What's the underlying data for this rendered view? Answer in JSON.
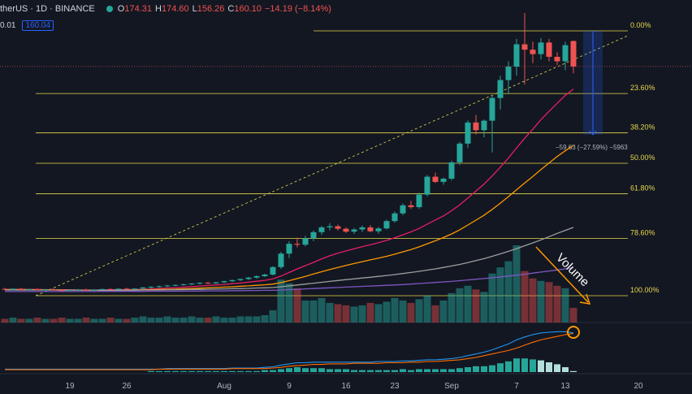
{
  "header": {
    "symbol": "therUS",
    "interval": "1D",
    "exchange": "BINANCE",
    "open_label": "O",
    "open": "174.31",
    "high_label": "H",
    "high": "174.60",
    "low_label": "L",
    "low": "156.26",
    "close_label": "C",
    "close": "160.10",
    "change": "−14.19 (−8.14%)"
  },
  "sub_header": {
    "left_value": "0.01",
    "price_box": "160.04"
  },
  "chart_data": {
    "type": "candlestick",
    "x_ticks": [
      "19",
      "26",
      "Aug",
      "9",
      "16",
      "23",
      "Sep",
      "7",
      "13",
      "20"
    ],
    "candles": [
      {
        "o": 35.8,
        "h": 36.4,
        "l": 35.2,
        "c": 35.6
      },
      {
        "o": 35.6,
        "h": 36.2,
        "l": 35.1,
        "c": 35.9
      },
      {
        "o": 35.9,
        "h": 36.3,
        "l": 35.0,
        "c": 35.3
      },
      {
        "o": 35.3,
        "h": 35.9,
        "l": 34.7,
        "c": 35.6
      },
      {
        "o": 35.6,
        "h": 36.1,
        "l": 35.0,
        "c": 35.2
      },
      {
        "o": 35.2,
        "h": 35.7,
        "l": 34.6,
        "c": 35.5
      },
      {
        "o": 35.5,
        "h": 36.0,
        "l": 34.9,
        "c": 35.1
      },
      {
        "o": 35.1,
        "h": 35.6,
        "l": 34.4,
        "c": 34.7
      },
      {
        "o": 34.7,
        "h": 35.4,
        "l": 34.3,
        "c": 35.2
      },
      {
        "o": 35.2,
        "h": 35.8,
        "l": 34.8,
        "c": 35.4
      },
      {
        "o": 35.4,
        "h": 35.9,
        "l": 34.9,
        "c": 35.0
      },
      {
        "o": 35.0,
        "h": 35.6,
        "l": 34.5,
        "c": 35.3
      },
      {
        "o": 35.3,
        "h": 36.0,
        "l": 35.0,
        "c": 35.7
      },
      {
        "o": 35.7,
        "h": 36.2,
        "l": 35.2,
        "c": 35.5
      },
      {
        "o": 35.5,
        "h": 36.1,
        "l": 35.1,
        "c": 35.9
      },
      {
        "o": 35.9,
        "h": 36.4,
        "l": 35.4,
        "c": 35.6
      },
      {
        "o": 35.6,
        "h": 36.2,
        "l": 35.2,
        "c": 36.0
      },
      {
        "o": 36.0,
        "h": 36.9,
        "l": 35.6,
        "c": 36.6
      },
      {
        "o": 36.6,
        "h": 37.3,
        "l": 36.1,
        "c": 37.0
      },
      {
        "o": 37.0,
        "h": 37.6,
        "l": 36.5,
        "c": 37.3
      },
      {
        "o": 37.3,
        "h": 38.0,
        "l": 36.9,
        "c": 37.7
      },
      {
        "o": 37.7,
        "h": 38.3,
        "l": 37.3,
        "c": 38.0
      },
      {
        "o": 38.0,
        "h": 38.7,
        "l": 37.6,
        "c": 38.4
      },
      {
        "o": 38.4,
        "h": 39.0,
        "l": 37.9,
        "c": 38.8
      },
      {
        "o": 38.8,
        "h": 39.5,
        "l": 38.2,
        "c": 39.2
      },
      {
        "o": 39.2,
        "h": 39.8,
        "l": 38.7,
        "c": 38.9
      },
      {
        "o": 38.9,
        "h": 39.6,
        "l": 38.5,
        "c": 39.5
      },
      {
        "o": 39.5,
        "h": 40.4,
        "l": 39.0,
        "c": 40.1
      },
      {
        "o": 40.1,
        "h": 41.0,
        "l": 39.6,
        "c": 40.7
      },
      {
        "o": 40.7,
        "h": 41.6,
        "l": 40.2,
        "c": 41.3
      },
      {
        "o": 41.3,
        "h": 42.5,
        "l": 40.8,
        "c": 42.1
      },
      {
        "o": 42.1,
        "h": 43.4,
        "l": 41.6,
        "c": 42.9
      },
      {
        "o": 42.9,
        "h": 44.3,
        "l": 42.4,
        "c": 43.8
      },
      {
        "o": 43.8,
        "h": 48.5,
        "l": 43.3,
        "c": 48.0
      },
      {
        "o": 48.0,
        "h": 56.5,
        "l": 47.0,
        "c": 55.5
      },
      {
        "o": 55.5,
        "h": 62.5,
        "l": 53.0,
        "c": 61.0
      },
      {
        "o": 61.0,
        "h": 64.5,
        "l": 59.0,
        "c": 60.5
      },
      {
        "o": 60.5,
        "h": 65.5,
        "l": 59.5,
        "c": 64.0
      },
      {
        "o": 64.0,
        "h": 68.5,
        "l": 62.5,
        "c": 67.5
      },
      {
        "o": 67.5,
        "h": 71.0,
        "l": 66.0,
        "c": 70.2
      },
      {
        "o": 70.2,
        "h": 72.5,
        "l": 68.5,
        "c": 70.8
      },
      {
        "o": 70.8,
        "h": 71.8,
        "l": 68.4,
        "c": 69.4
      },
      {
        "o": 69.4,
        "h": 70.2,
        "l": 67.0,
        "c": 67.8
      },
      {
        "o": 67.8,
        "h": 69.8,
        "l": 66.5,
        "c": 69.0
      },
      {
        "o": 69.0,
        "h": 71.2,
        "l": 67.6,
        "c": 70.2
      },
      {
        "o": 70.2,
        "h": 71.5,
        "l": 67.4,
        "c": 68.0
      },
      {
        "o": 68.0,
        "h": 70.5,
        "l": 66.6,
        "c": 69.6
      },
      {
        "o": 69.6,
        "h": 74.5,
        "l": 69.0,
        "c": 73.7
      },
      {
        "o": 73.7,
        "h": 79.0,
        "l": 72.8,
        "c": 78.0
      },
      {
        "o": 78.0,
        "h": 83.5,
        "l": 77.0,
        "c": 82.5
      },
      {
        "o": 82.5,
        "h": 85.0,
        "l": 80.5,
        "c": 81.5
      },
      {
        "o": 81.5,
        "h": 89.5,
        "l": 80.5,
        "c": 88.5
      },
      {
        "o": 88.5,
        "h": 99.5,
        "l": 87.5,
        "c": 98.5
      },
      {
        "o": 98.5,
        "h": 100.8,
        "l": 95.0,
        "c": 95.6
      },
      {
        "o": 95.6,
        "h": 98.0,
        "l": 94.0,
        "c": 97.4
      },
      {
        "o": 97.4,
        "h": 107.5,
        "l": 96.5,
        "c": 106.5
      },
      {
        "o": 106.5,
        "h": 118.0,
        "l": 105.0,
        "c": 117.0
      },
      {
        "o": 117.0,
        "h": 130.0,
        "l": 114.5,
        "c": 128.8
      },
      {
        "o": 128.8,
        "h": 133.0,
        "l": 122.0,
        "c": 124.5
      },
      {
        "o": 124.5,
        "h": 130.5,
        "l": 120.5,
        "c": 129.8
      },
      {
        "o": 129.8,
        "h": 144.0,
        "l": 112.0,
        "c": 142.5
      },
      {
        "o": 142.5,
        "h": 155.0,
        "l": 136.0,
        "c": 152.5
      },
      {
        "o": 152.5,
        "h": 163.0,
        "l": 145.0,
        "c": 160.0
      },
      {
        "o": 160.0,
        "h": 175.5,
        "l": 155.0,
        "c": 172.5
      },
      {
        "o": 172.5,
        "h": 190.0,
        "l": 150.0,
        "c": 169.5
      },
      {
        "o": 169.5,
        "h": 174.0,
        "l": 162.0,
        "c": 167.0
      },
      {
        "o": 167.0,
        "h": 176.0,
        "l": 164.0,
        "c": 173.5
      },
      {
        "o": 173.5,
        "h": 175.5,
        "l": 163.0,
        "c": 165.5
      },
      {
        "o": 165.5,
        "h": 168.0,
        "l": 161.0,
        "c": 163.0
      },
      {
        "o": 163.0,
        "h": 174.0,
        "l": 158.0,
        "c": 172.0
      },
      {
        "o": 174.3,
        "h": 174.6,
        "l": 156.3,
        "c": 160.1
      }
    ],
    "ma_lines": [
      {
        "name": "MA-fast",
        "color": "#e91e63",
        "values": [
          35.6,
          35.6,
          35.6,
          35.5,
          35.5,
          35.4,
          35.4,
          35.3,
          35.3,
          35.2,
          35.2,
          35.2,
          35.2,
          35.3,
          35.3,
          35.4,
          35.5,
          35.6,
          35.8,
          36.0,
          36.3,
          36.5,
          36.8,
          37.1,
          37.4,
          37.7,
          38.0,
          38.3,
          38.7,
          39.1,
          39.6,
          40.1,
          40.6,
          41.4,
          43.0,
          45.0,
          47.0,
          48.8,
          50.6,
          52.6,
          54.3,
          55.8,
          57.0,
          58.2,
          59.4,
          60.5,
          61.6,
          62.9,
          64.4,
          66.0,
          67.7,
          69.6,
          72.0,
          74.3,
          76.6,
          79.5,
          82.8,
          86.6,
          90.5,
          94.4,
          98.9,
          103.8,
          109.0,
          114.6,
          120.0,
          125.0,
          130.4,
          135.0,
          139.5,
          144.0,
          147.5
        ]
      },
      {
        "name": "MA-mid",
        "color": "#ff9800",
        "values": [
          35.4,
          35.4,
          35.4,
          35.4,
          35.3,
          35.3,
          35.3,
          35.2,
          35.2,
          35.2,
          35.1,
          35.1,
          35.1,
          35.1,
          35.1,
          35.2,
          35.2,
          35.3,
          35.4,
          35.5,
          35.6,
          35.7,
          35.9,
          36.0,
          36.2,
          36.4,
          36.6,
          36.8,
          37.0,
          37.3,
          37.5,
          37.8,
          38.1,
          38.5,
          39.3,
          40.4,
          41.6,
          42.8,
          44.1,
          45.4,
          46.6,
          47.8,
          48.9,
          50.0,
          51.0,
          52.0,
          53.0,
          54.0,
          55.2,
          56.5,
          57.8,
          59.3,
          61.0,
          62.7,
          64.5,
          66.5,
          68.8,
          71.5,
          74.2,
          77.0,
          80.2,
          83.7,
          87.4,
          91.2,
          95.0,
          98.6,
          102.5,
          106.2,
          109.8,
          113.0,
          116.0
        ]
      },
      {
        "name": "MA-slow",
        "color": "#9e9e9e",
        "values": [
          35.2,
          35.2,
          35.2,
          35.2,
          35.2,
          35.2,
          35.2,
          35.1,
          35.1,
          35.1,
          35.1,
          35.1,
          35.1,
          35.1,
          35.1,
          35.1,
          35.1,
          35.2,
          35.2,
          35.2,
          35.3,
          35.3,
          35.4,
          35.5,
          35.5,
          35.6,
          35.7,
          35.8,
          35.9,
          36.0,
          36.1,
          36.3,
          36.4,
          36.6,
          37.0,
          37.5,
          38.0,
          38.5,
          39.0,
          39.5,
          40.0,
          40.5,
          41.0,
          41.4,
          41.9,
          42.3,
          42.8,
          43.3,
          43.8,
          44.4,
          45.0,
          45.6,
          46.3,
          47.0,
          47.8,
          48.6,
          49.5,
          50.5,
          51.6,
          52.7,
          54.0,
          55.4,
          56.8,
          58.3,
          59.9,
          61.5,
          63.2,
          65.0,
          66.8,
          68.5,
          70.2
        ]
      },
      {
        "name": "MA-200",
        "color": "#7e57c2",
        "values": [
          34.3,
          34.3,
          34.3,
          34.3,
          34.3,
          34.3,
          34.3,
          34.3,
          34.3,
          34.3,
          34.3,
          34.3,
          34.4,
          34.4,
          34.4,
          34.4,
          34.4,
          34.4,
          34.5,
          34.5,
          34.5,
          34.5,
          34.6,
          34.6,
          34.6,
          34.7,
          34.7,
          34.7,
          34.8,
          34.8,
          34.9,
          34.9,
          35.0,
          35.0,
          35.2,
          35.4,
          35.6,
          35.8,
          36.0,
          36.2,
          36.4,
          36.6,
          36.8,
          37.0,
          37.2,
          37.4,
          37.6,
          37.8,
          38.0,
          38.2,
          38.5,
          38.8,
          39.1,
          39.4,
          39.7,
          40.0,
          40.4,
          40.8,
          41.2,
          41.6,
          42.0,
          42.5,
          43.0,
          43.5,
          44.0,
          44.6,
          45.2,
          45.8,
          46.4,
          47.0,
          47.6
        ]
      }
    ],
    "volume": [
      3,
      4,
      3,
      3,
      4,
      3,
      3,
      4,
      3,
      3,
      4,
      3,
      3,
      4,
      3,
      3,
      4,
      5,
      4,
      4,
      5,
      4,
      4,
      5,
      4,
      4,
      5,
      4,
      4,
      5,
      5,
      5,
      6,
      10,
      35,
      32,
      28,
      18,
      18,
      20,
      16,
      15,
      14,
      13,
      14,
      16,
      15,
      17,
      20,
      18,
      16,
      19,
      22,
      14,
      18,
      24,
      28,
      30,
      27,
      25,
      40,
      45,
      50,
      63,
      42,
      36,
      34,
      33,
      30,
      28,
      12
    ],
    "volume_colors_up": "#26a69a",
    "volume_colors_down": "#ef5350",
    "fib_levels": [
      {
        "label": "0.00%",
        "value": 180.0
      },
      {
        "label": "23.60%",
        "value": 145.0
      },
      {
        "label": "38.20%",
        "value": 123.0
      },
      {
        "label": "50.00%",
        "value": 106.0
      },
      {
        "label": "61.80%",
        "value": 89.0
      },
      {
        "label": "78.60%",
        "value": 64.0
      },
      {
        "label": "100.00%",
        "value": 32.0
      }
    ],
    "fib_color": "#e6d84a",
    "measure_label": "−59.63 (−27.59%) −5963",
    "annotation_text": "Volume",
    "annotation_color": "#ff9800",
    "osc_line1": [
      5,
      5,
      5,
      5,
      5,
      5,
      5,
      5,
      5,
      5,
      5,
      5,
      5,
      5,
      5,
      5,
      5,
      5,
      5,
      5,
      6,
      6,
      6,
      6,
      6,
      6,
      6,
      6,
      7,
      7,
      7,
      7,
      8,
      9,
      12,
      14,
      16,
      16,
      17,
      17,
      17,
      17,
      17,
      17,
      17,
      17,
      18,
      18,
      18,
      19,
      19,
      20,
      21,
      21,
      22,
      23,
      25,
      28,
      31,
      34,
      38,
      43,
      48,
      55,
      60,
      64,
      67,
      68,
      69,
      69,
      67
    ],
    "osc_line2": [
      4,
      4,
      4,
      4,
      4,
      4,
      4,
      4,
      4,
      4,
      4,
      4,
      4,
      4,
      4,
      4,
      4,
      4,
      4,
      5,
      5,
      5,
      5,
      5,
      5,
      5,
      5,
      5,
      6,
      6,
      6,
      6,
      6,
      7,
      8,
      10,
      11,
      12,
      13,
      13,
      14,
      14,
      14,
      15,
      15,
      15,
      15,
      16,
      16,
      16,
      17,
      17,
      18,
      18,
      19,
      20,
      21,
      23,
      25,
      28,
      31,
      34,
      37,
      41,
      46,
      51,
      55,
      58,
      61,
      64,
      66
    ],
    "osc_hist": [
      0,
      0,
      0,
      0,
      0,
      0,
      0,
      0,
      0,
      0,
      0,
      0,
      0,
      0,
      0,
      0,
      0,
      0,
      1,
      1,
      1,
      1,
      1,
      1,
      1,
      1,
      1,
      1,
      1,
      1,
      1,
      1,
      2,
      2,
      3,
      4,
      5,
      4,
      4,
      4,
      3,
      3,
      3,
      2,
      2,
      2,
      2,
      2,
      2,
      3,
      2,
      3,
      3,
      3,
      3,
      3,
      4,
      5,
      6,
      6,
      7,
      9,
      11,
      14,
      14,
      13,
      12,
      10,
      8,
      5,
      1
    ]
  }
}
